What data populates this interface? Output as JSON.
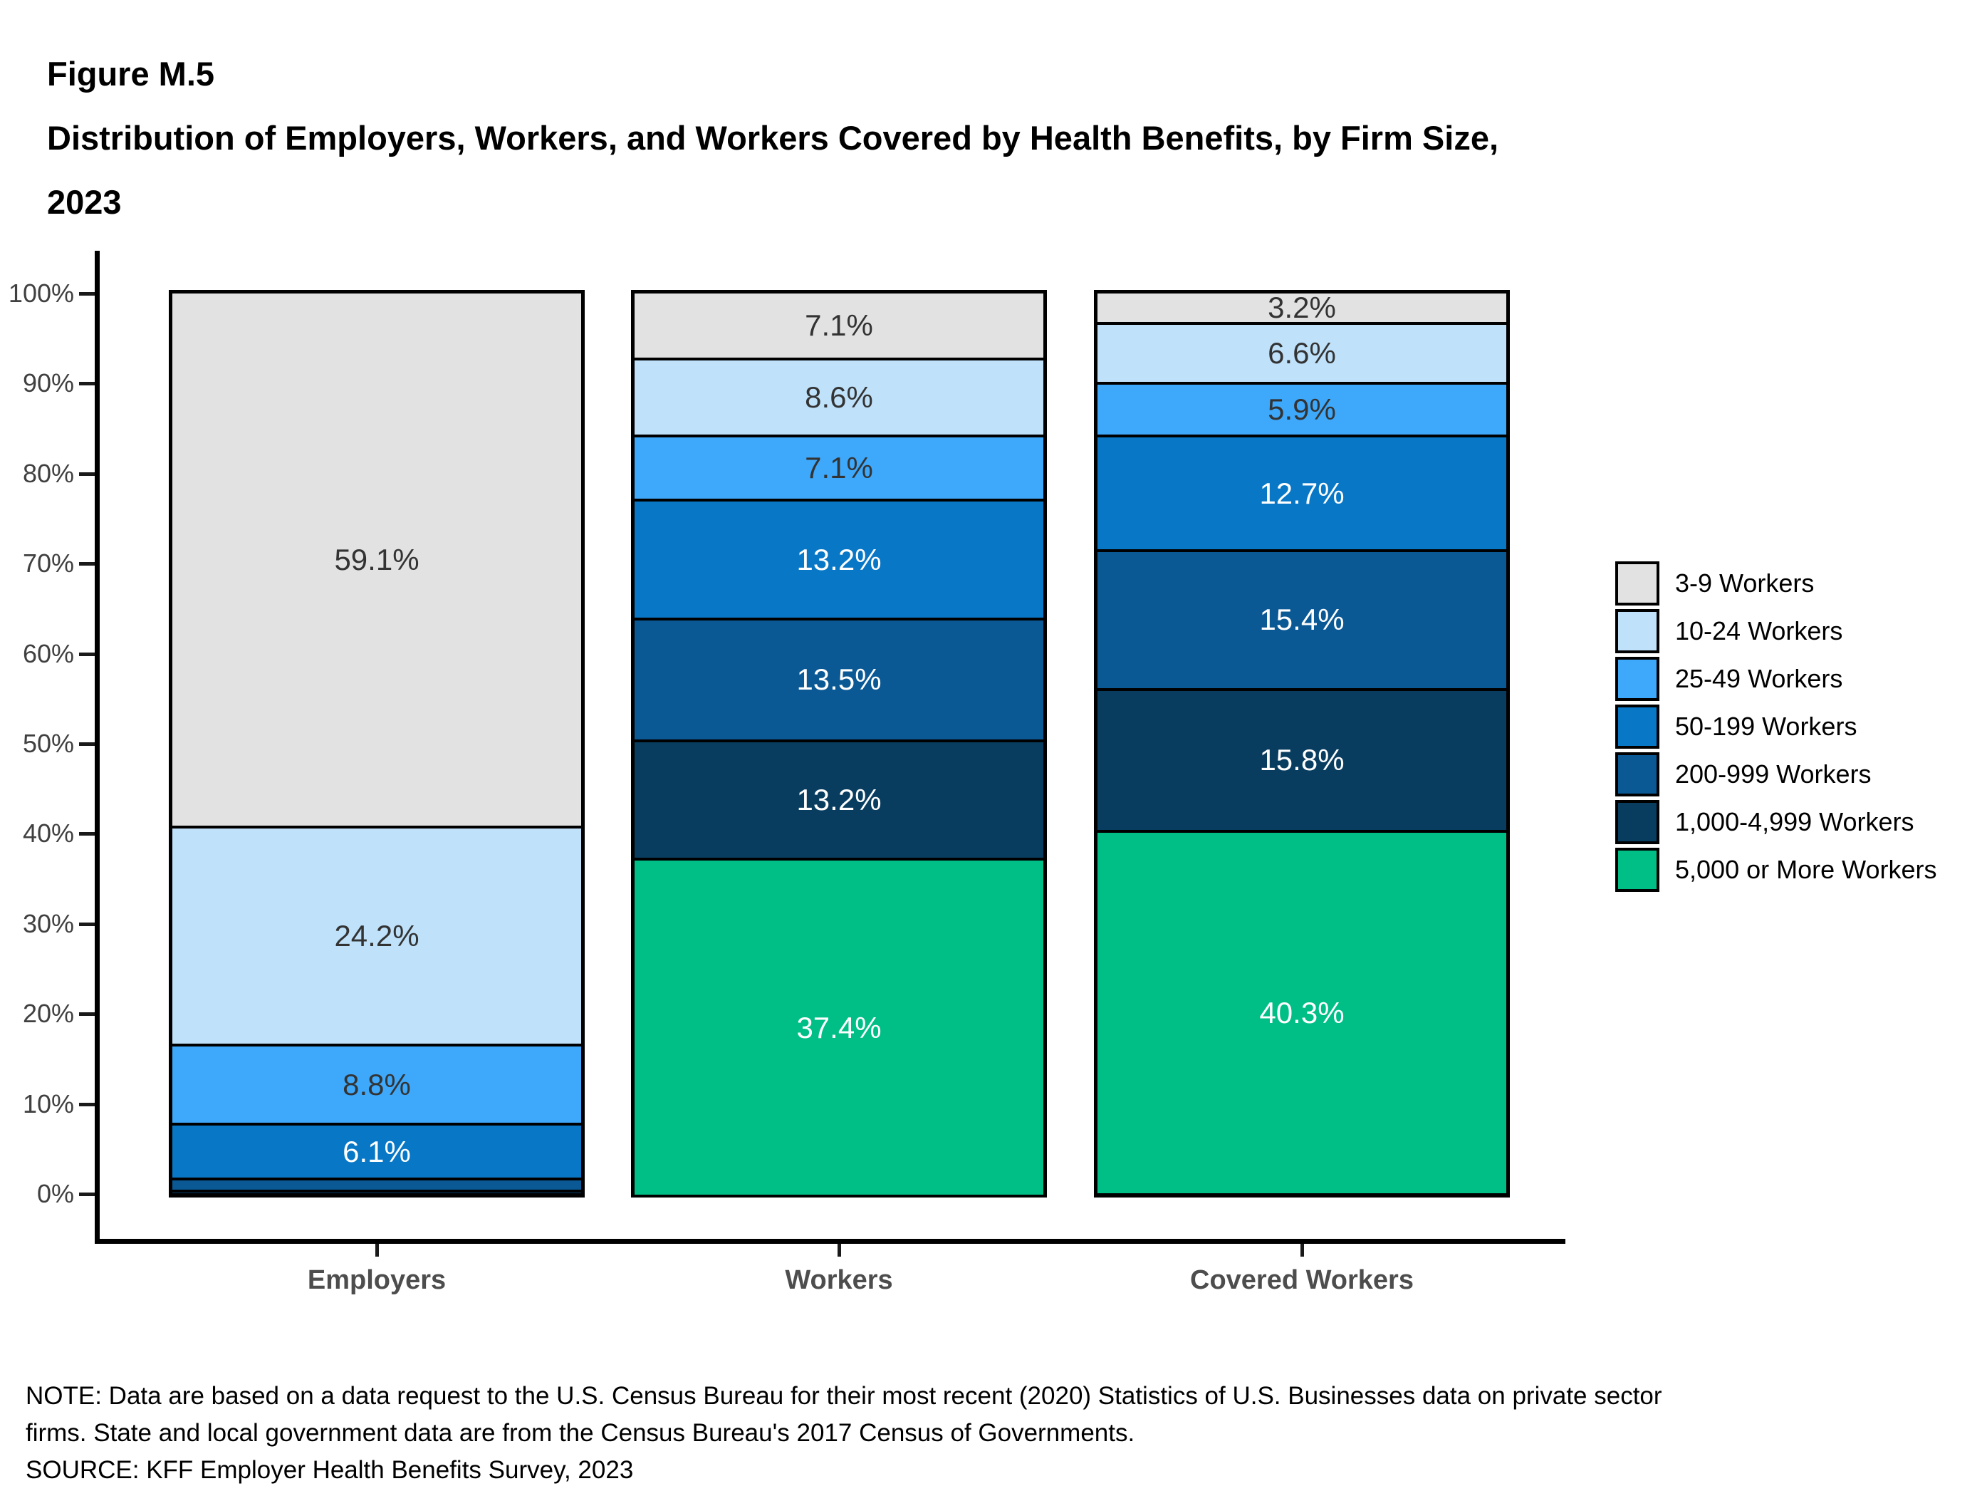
{
  "title": {
    "figure_label": "Figure M.5",
    "line1": "Distribution of Employers, Workers, and Workers Covered by Health Benefits, by Firm Size,",
    "line2": "2023"
  },
  "notes": {
    "note_line1": "NOTE: Data are based on a data request to the U.S. Census Bureau for their most recent (2020) Statistics of U.S. Businesses data on private sector",
    "note_line2": "firms. State and local government data are from the Census Bureau's 2017 Census of Governments.",
    "source": "SOURCE: KFF Employer Health Benefits Survey, 2023"
  },
  "chart_data": {
    "type": "bar",
    "stacked": true,
    "stacking": "percent",
    "grid": false,
    "legend_position": "right",
    "categories": [
      "Employers",
      "Workers",
      "Covered Workers"
    ],
    "series": [
      {
        "name": "3-9 Workers",
        "color": "#e2e2e2",
        "label_color": "#333333",
        "values": [
          59.1,
          7.1,
          3.2
        ],
        "labels": [
          "59.1%",
          "7.1%",
          "3.2%"
        ]
      },
      {
        "name": "10-24 Workers",
        "color": "#bfe1fa",
        "label_color": "#333333",
        "values": [
          24.2,
          8.6,
          6.6
        ],
        "labels": [
          "24.2%",
          "8.6%",
          "6.6%"
        ]
      },
      {
        "name": "25-49 Workers",
        "color": "#3ea8fa",
        "label_color": "#333333",
        "values": [
          8.8,
          7.1,
          5.9
        ],
        "labels": [
          "8.8%",
          "7.1%",
          "5.9%"
        ]
      },
      {
        "name": "50-199 Workers",
        "color": "#0877c6",
        "label_color": "#ffffff",
        "values": [
          6.1,
          13.2,
          12.7
        ],
        "labels": [
          "6.1%",
          "13.2%",
          "12.7%"
        ]
      },
      {
        "name": "200-999 Workers",
        "color": "#0a5894",
        "label_color": "#ffffff",
        "values": [
          1.3,
          13.5,
          15.4
        ],
        "labels": [
          "",
          "13.5%",
          "15.4%"
        ]
      },
      {
        "name": "1,000-4,999 Workers",
        "color": "#093d60",
        "label_color": "#ffffff",
        "values": [
          0.4,
          13.2,
          15.8
        ],
        "labels": [
          "",
          "13.2%",
          "15.8%"
        ]
      },
      {
        "name": "5,000 or More Workers",
        "color": "#00bf86",
        "label_color": "#ffffff",
        "values": [
          0.1,
          37.4,
          40.3
        ],
        "labels": [
          "",
          "37.4%",
          "40.3%"
        ]
      }
    ],
    "y_axis": {
      "min": 0,
      "max": 100,
      "tick_step": 10,
      "ticks": [
        "0%",
        "10%",
        "20%",
        "30%",
        "40%",
        "50%",
        "60%",
        "70%",
        "80%",
        "90%",
        "100%"
      ]
    }
  }
}
